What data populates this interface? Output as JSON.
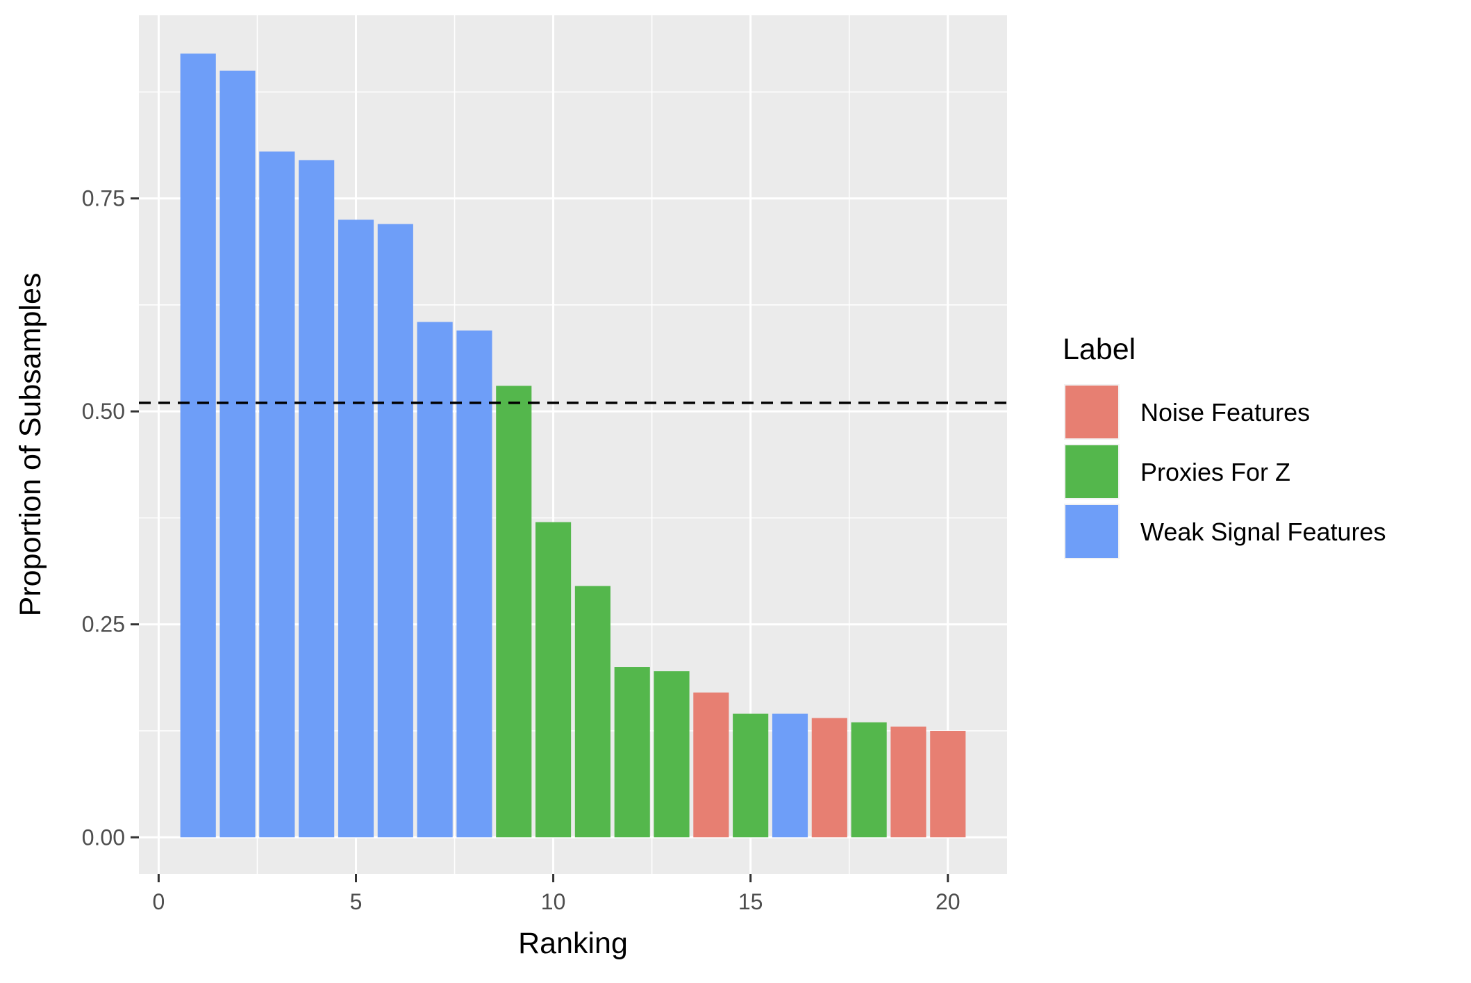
{
  "chart_data": {
    "type": "bar",
    "xlabel": "Ranking",
    "ylabel": "Proportion of Subsamples",
    "xlim": [
      -0.5,
      21.5
    ],
    "ylim": [
      -0.043,
      0.965
    ],
    "x_ticks": [
      0,
      5,
      10,
      15,
      20
    ],
    "x_tick_labels": [
      "0",
      "5",
      "10",
      "15",
      "20"
    ],
    "y_ticks": [
      0,
      0.25,
      0.5,
      0.75
    ],
    "y_tick_labels": [
      "0.00",
      "0.25",
      "0.50",
      "0.75"
    ],
    "grid": true,
    "reference_line": {
      "y": 0.51,
      "style": "dashed"
    },
    "legend": {
      "title": "Label",
      "position": "right",
      "entries": [
        {
          "name": "Noise Features",
          "color": "#E77F72"
        },
        {
          "name": "Proxies For Z",
          "color": "#54B74C"
        },
        {
          "name": "Weak Signal Features",
          "color": "#6E9EF8"
        }
      ]
    },
    "bars": [
      {
        "x": 1,
        "value": 0.92,
        "label": "Weak Signal Features"
      },
      {
        "x": 2,
        "value": 0.9,
        "label": "Weak Signal Features"
      },
      {
        "x": 3,
        "value": 0.805,
        "label": "Weak Signal Features"
      },
      {
        "x": 4,
        "value": 0.795,
        "label": "Weak Signal Features"
      },
      {
        "x": 5,
        "value": 0.725,
        "label": "Weak Signal Features"
      },
      {
        "x": 6,
        "value": 0.72,
        "label": "Weak Signal Features"
      },
      {
        "x": 7,
        "value": 0.605,
        "label": "Weak Signal Features"
      },
      {
        "x": 8,
        "value": 0.595,
        "label": "Weak Signal Features"
      },
      {
        "x": 9,
        "value": 0.53,
        "label": "Proxies For Z"
      },
      {
        "x": 10,
        "value": 0.37,
        "label": "Proxies For Z"
      },
      {
        "x": 11,
        "value": 0.295,
        "label": "Proxies For Z"
      },
      {
        "x": 12,
        "value": 0.2,
        "label": "Proxies For Z"
      },
      {
        "x": 13,
        "value": 0.195,
        "label": "Proxies For Z"
      },
      {
        "x": 14,
        "value": 0.17,
        "label": "Noise Features"
      },
      {
        "x": 15,
        "value": 0.145,
        "label": "Proxies For Z"
      },
      {
        "x": 16,
        "value": 0.145,
        "label": "Weak Signal Features"
      },
      {
        "x": 17,
        "value": 0.14,
        "label": "Noise Features"
      },
      {
        "x": 18,
        "value": 0.135,
        "label": "Proxies For Z"
      },
      {
        "x": 19,
        "value": 0.13,
        "label": "Noise Features"
      },
      {
        "x": 20,
        "value": 0.125,
        "label": "Noise Features"
      }
    ],
    "colors": {
      "panel_background": "#EBEBEB",
      "grid_major": "#FFFFFF",
      "reference_line": "#000000"
    }
  }
}
